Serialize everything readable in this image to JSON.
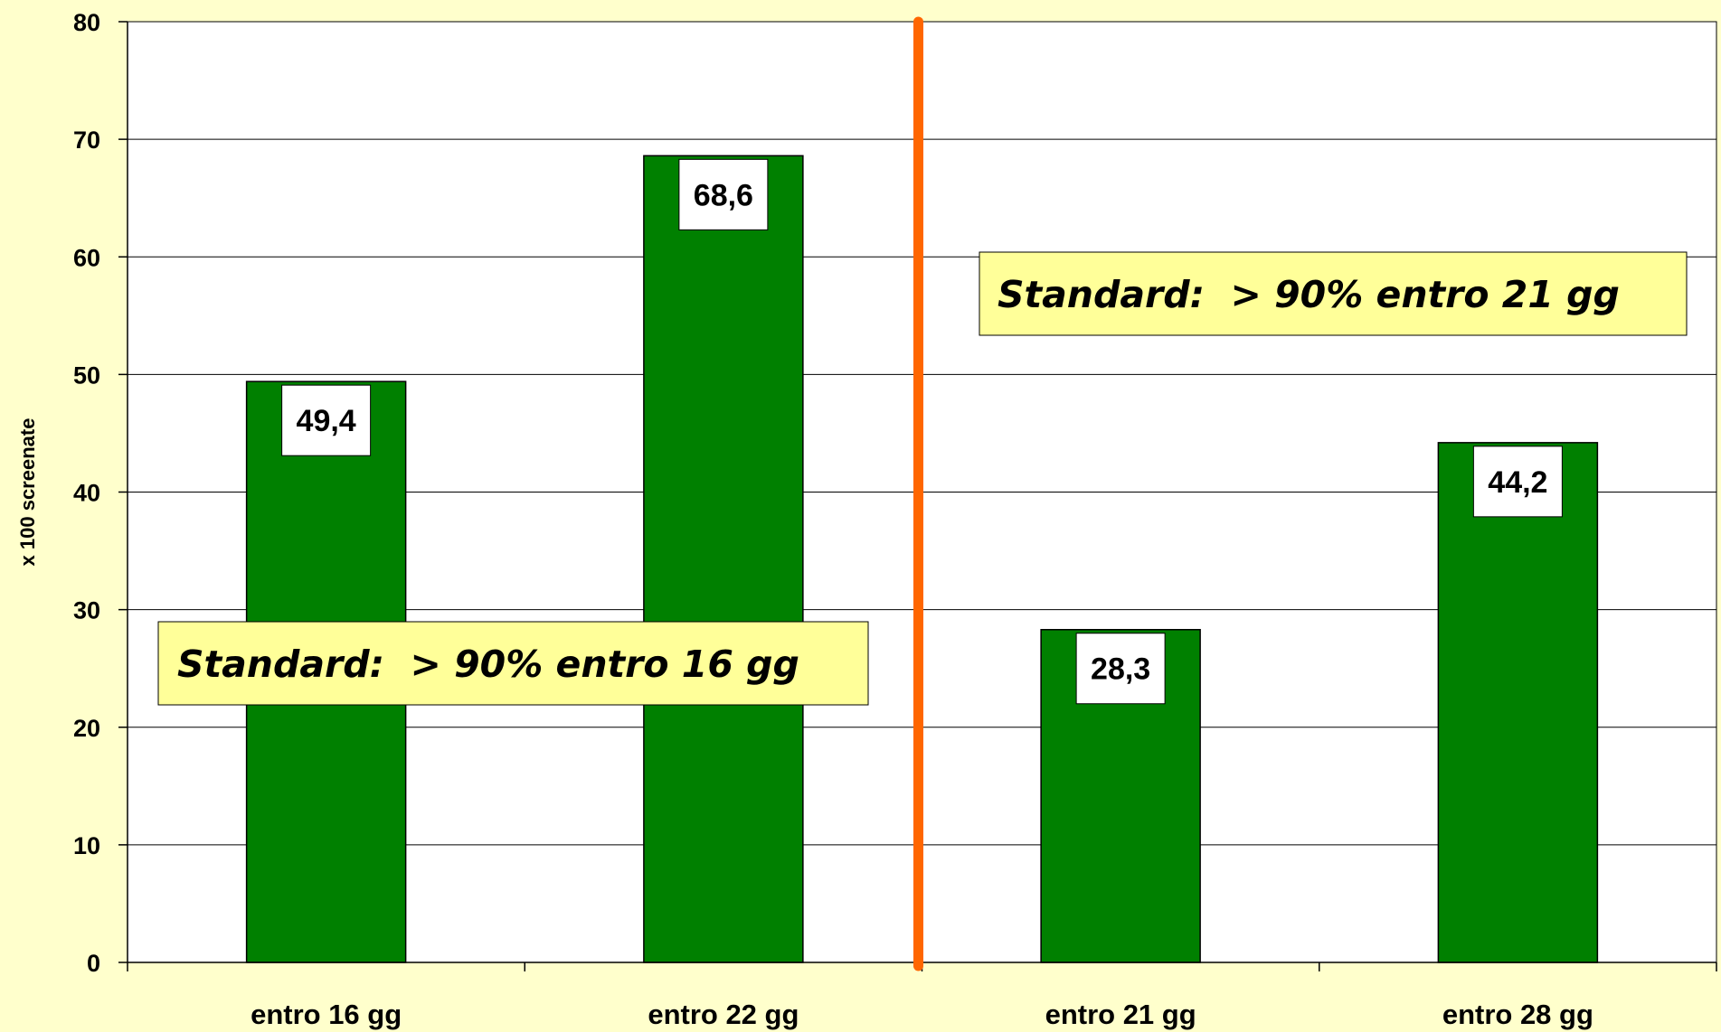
{
  "chart_data": {
    "type": "bar",
    "title": "",
    "xlabel": "",
    "ylabel": "x 100 screenate",
    "ylim": [
      0,
      80
    ],
    "yticks": [
      "0",
      "10",
      "20",
      "30",
      "40",
      "50",
      "60",
      "70",
      "80"
    ],
    "categories": [
      "entro 16 gg",
      "entro 22 gg",
      "entro 21 gg",
      "entro 28 gg"
    ],
    "values": [
      49.4,
      68.6,
      28.3,
      44.2
    ],
    "value_labels": [
      "49,4",
      "68,6",
      "28,3",
      "44,2"
    ],
    "grid": true,
    "legend": "none",
    "groups": [
      {
        "categories": [
          "entro 16 gg",
          "entro 22 gg"
        ],
        "annotation": "Standard:  > 90% entro 16 gg"
      },
      {
        "categories": [
          "entro 21 gg",
          "entro 28 gg"
        ],
        "annotation": "Standard:  > 90% entro 21 gg"
      }
    ],
    "colors": {
      "background": "#FFFFCC",
      "plot": "#FFFFFF",
      "bar": "#008000",
      "divider": "#FF6600",
      "annotation_box": "#FFFF99"
    }
  }
}
